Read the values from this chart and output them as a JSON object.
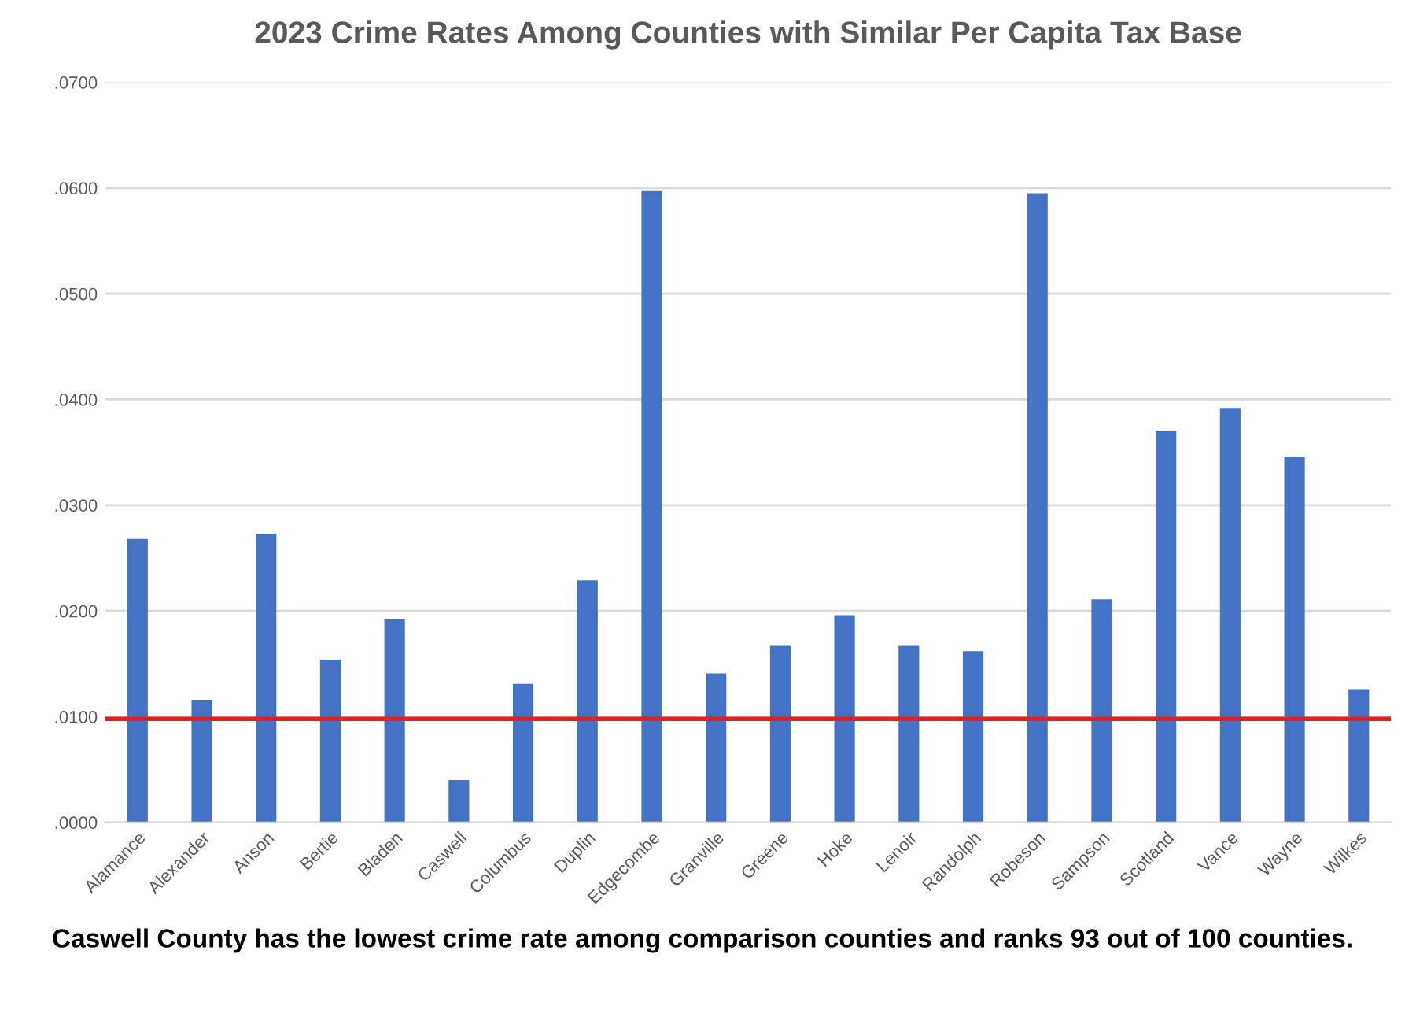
{
  "chart_data": {
    "type": "bar",
    "title": "2023 Crime Rates Among Counties with Similar Per Capita Tax Base",
    "categories": [
      "Alamance",
      "Alexander",
      "Anson",
      "Bertie",
      "Bladen",
      "Caswell",
      "Columbus",
      "Duplin",
      "Edgecombe",
      "Granville",
      "Greene",
      "Hoke",
      "Lenoir",
      "Randolph",
      "Robeson",
      "Sampson",
      "Scotland",
      "Vance",
      "Wayne",
      "Wilkes"
    ],
    "values": [
      0.0268,
      0.0116,
      0.0273,
      0.0154,
      0.0192,
      0.004,
      0.0131,
      0.0229,
      0.0597,
      0.0141,
      0.0167,
      0.0196,
      0.0167,
      0.0162,
      0.0595,
      0.0211,
      0.037,
      0.0392,
      0.0346,
      0.0126
    ],
    "color": "#4472c4",
    "ylim": [
      0,
      0.07
    ],
    "yticks": [
      {
        "value": 0,
        "label": ".0000"
      },
      {
        "value": 0.01,
        "label": ".0100"
      },
      {
        "value": 0.02,
        "label": ".0200"
      },
      {
        "value": 0.03,
        "label": ".0300"
      },
      {
        "value": 0.04,
        "label": ".0400"
      },
      {
        "value": 0.05,
        "label": ".0500"
      },
      {
        "value": 0.06,
        "label": ".0600"
      },
      {
        "value": 0.07,
        "label": ".0700"
      }
    ],
    "grid": "y",
    "ref_lines": [
      {
        "axis": "y",
        "value": 0.0098,
        "color": "#e8201c"
      }
    ],
    "annotations": [
      "Caswell County has the lowest crime rate among comparison counties and ranks 93 out of 100 counties."
    ]
  }
}
